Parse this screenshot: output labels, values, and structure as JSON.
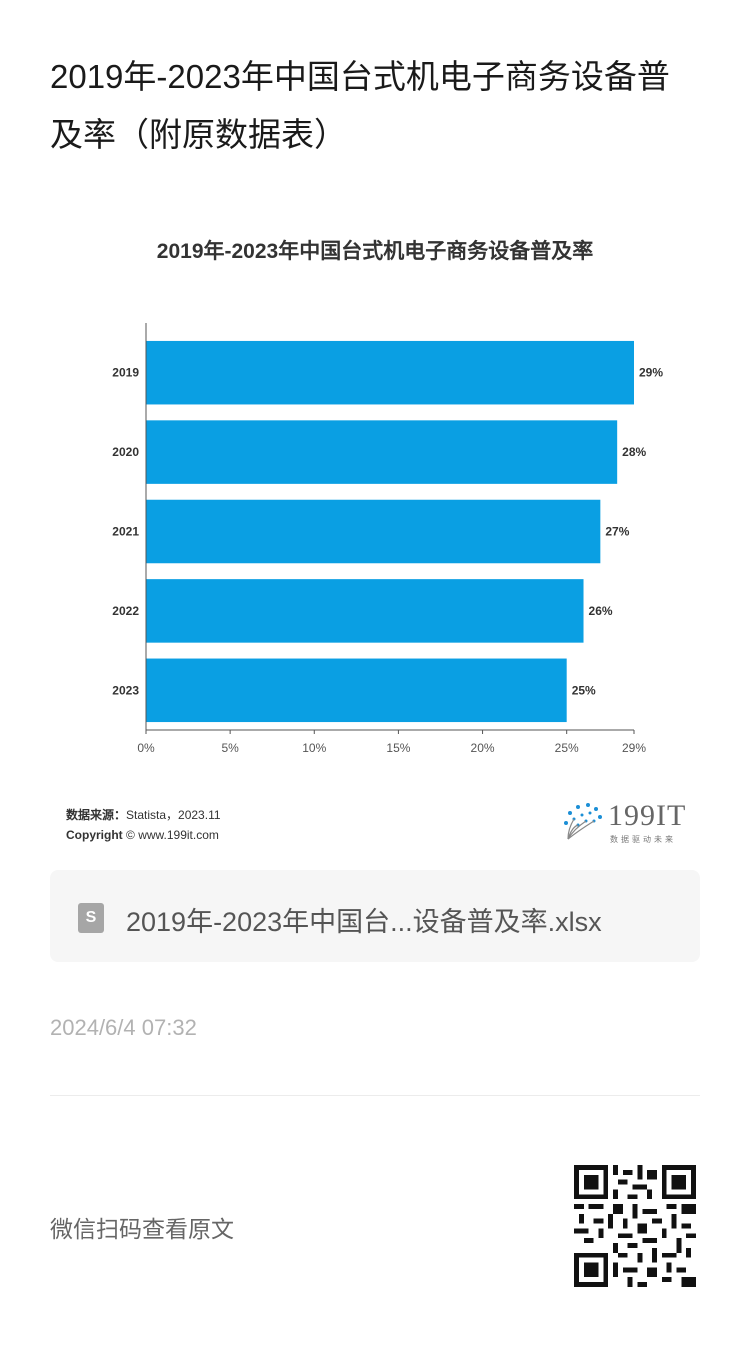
{
  "article": {
    "title": "2019年-2023年中国台式机电子商务设备普及率（附原数据表）"
  },
  "chart_data": {
    "type": "bar",
    "orientation": "horizontal",
    "title": "2019年-2023年中国台式机电子商务设备普及率",
    "categories": [
      "2019",
      "2020",
      "2021",
      "2022",
      "2023"
    ],
    "values": [
      29,
      28,
      27,
      26,
      25
    ],
    "value_labels": [
      "29%",
      "28%",
      "27%",
      "26%",
      "25%"
    ],
    "x_ticks": [
      "0%",
      "5%",
      "10%",
      "15%",
      "20%",
      "25%",
      "29%"
    ],
    "x_tick_values": [
      0,
      5,
      10,
      15,
      20,
      25,
      29
    ],
    "xlim": [
      0,
      29
    ],
    "bar_color": "#0a9fe3",
    "grid": false,
    "legend": "none"
  },
  "source": {
    "label": "数据来源：",
    "value": "Statista，2023.11",
    "copyright_label": "Copyright",
    "copyright_value": "© www.199it.com"
  },
  "logo": {
    "text": "199IT",
    "tagline": "数据驱动未来"
  },
  "attachment": {
    "icon": "spreadsheet-file-icon",
    "icon_letter": "S",
    "file_name": "2019年-2023年中国台...设备普及率.xlsx"
  },
  "post": {
    "timestamp": "2024/6/4 07:32",
    "scan_hint": "微信扫码查看原文"
  },
  "colors": {
    "bar": "#0a9fe3",
    "axis": "#555555"
  }
}
